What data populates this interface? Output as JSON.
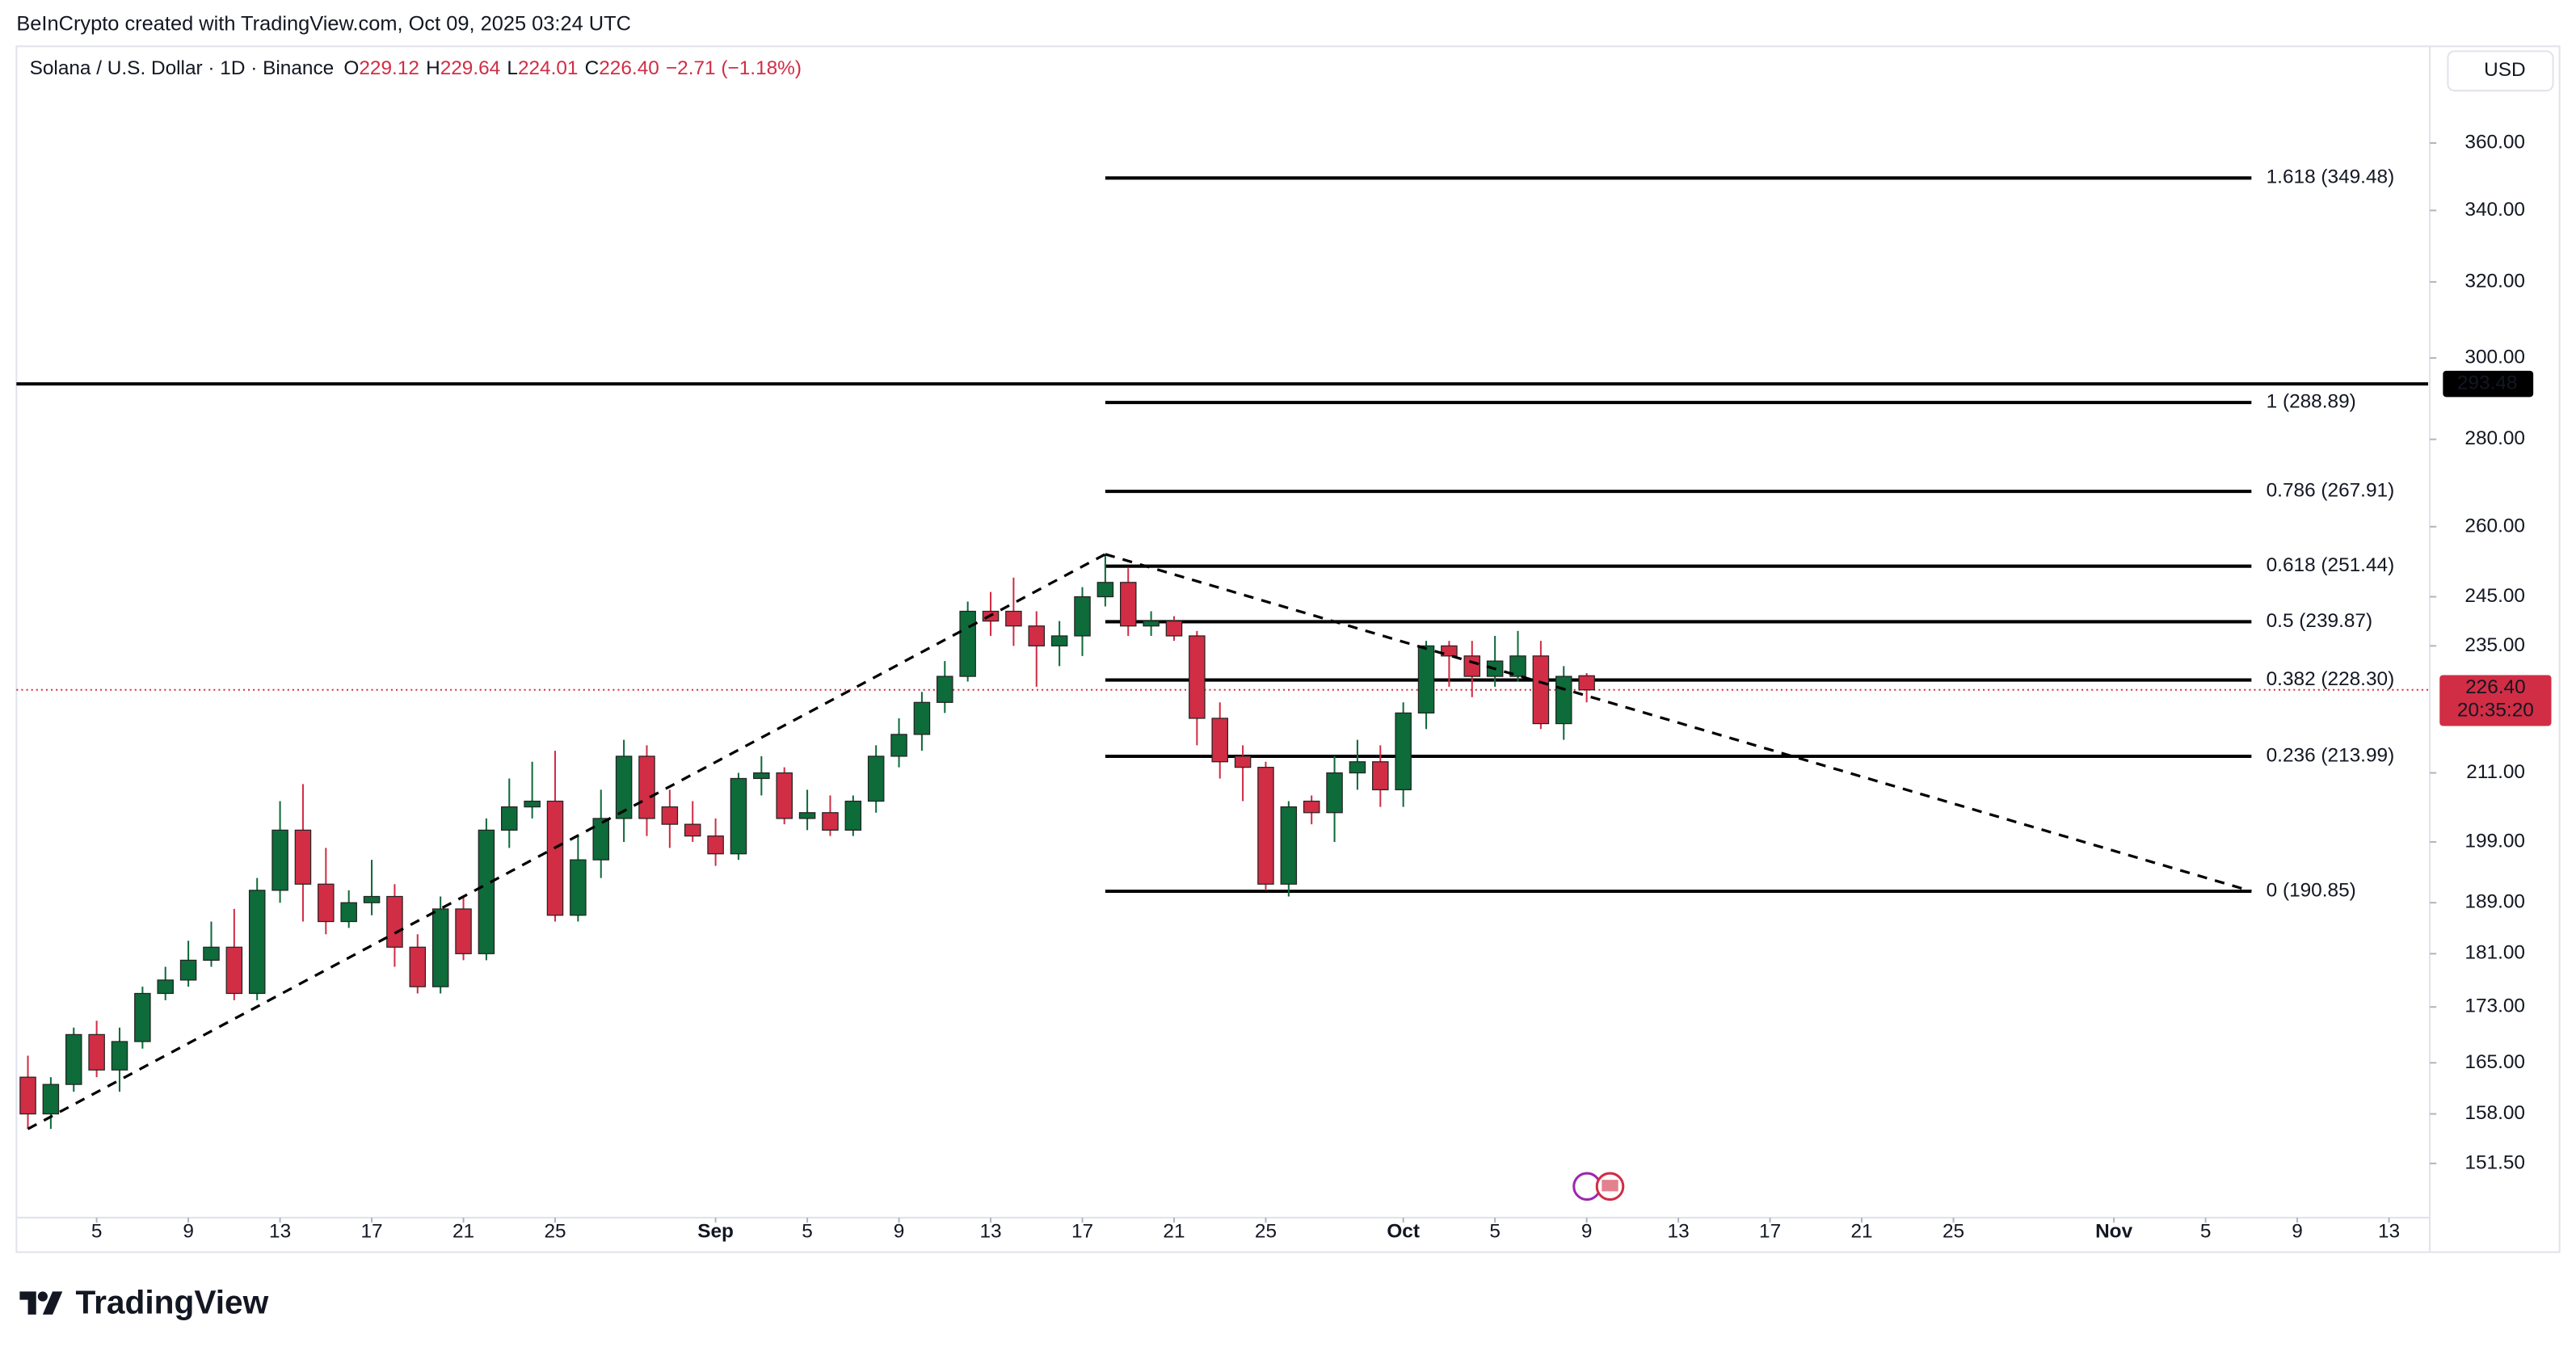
{
  "header": {
    "credit": "BeInCrypto created with TradingView.com, Oct 09, 2025 03:24 UTC"
  },
  "chart_data": {
    "type": "candlestick",
    "title": "Solana / U.S. Dollar · 1D · Binance",
    "ohlc_legend": [
      {
        "key": "O",
        "value": "229.12"
      },
      {
        "key": "H",
        "value": "229.64"
      },
      {
        "key": "L",
        "value": "224.01"
      },
      {
        "key": "C",
        "value": "226.40"
      }
    ],
    "change": "−2.71 (−1.18%)",
    "currency": "USD",
    "x": [
      "2025-08-02",
      "2025-08-03",
      "2025-08-04",
      "2025-08-05",
      "2025-08-06",
      "2025-08-07",
      "2025-08-08",
      "2025-08-09",
      "2025-08-10",
      "2025-08-11",
      "2025-08-12",
      "2025-08-13",
      "2025-08-14",
      "2025-08-15",
      "2025-08-16",
      "2025-08-17",
      "2025-08-18",
      "2025-08-19",
      "2025-08-20",
      "2025-08-21",
      "2025-08-22",
      "2025-08-23",
      "2025-08-24",
      "2025-08-25",
      "2025-08-26",
      "2025-08-27",
      "2025-08-28",
      "2025-08-29",
      "2025-08-30",
      "2025-08-31",
      "2025-09-01",
      "2025-09-02",
      "2025-09-03",
      "2025-09-04",
      "2025-09-05",
      "2025-09-06",
      "2025-09-07",
      "2025-09-08",
      "2025-09-09",
      "2025-09-10",
      "2025-09-11",
      "2025-09-12",
      "2025-09-13",
      "2025-09-14",
      "2025-09-15",
      "2025-09-16",
      "2025-09-17",
      "2025-09-18",
      "2025-09-19",
      "2025-09-20",
      "2025-09-21",
      "2025-09-22",
      "2025-09-23",
      "2025-09-24",
      "2025-09-25",
      "2025-09-26",
      "2025-09-27",
      "2025-09-28",
      "2025-09-29",
      "2025-09-30",
      "2025-10-01",
      "2025-10-02",
      "2025-10-03",
      "2025-10-04",
      "2025-10-05",
      "2025-10-06",
      "2025-10-07",
      "2025-10-08",
      "2025-10-09"
    ],
    "open": [
      163,
      158,
      162,
      169,
      164,
      168,
      175,
      177,
      180,
      182,
      175,
      191,
      201,
      192,
      186,
      189,
      190,
      182,
      176,
      188,
      181,
      201,
      205,
      206,
      187,
      196,
      203,
      214,
      205,
      202,
      200,
      197,
      210,
      211,
      203,
      204,
      201,
      206,
      214,
      218,
      224,
      229,
      242,
      242,
      239,
      235,
      237,
      245,
      248,
      239,
      240,
      237,
      221,
      214,
      212,
      192,
      206,
      204,
      211,
      213,
      208,
      222,
      235,
      233,
      229,
      229,
      233,
      220,
      229.12
    ],
    "high": [
      166,
      163,
      170,
      171,
      170,
      176,
      179,
      183,
      186,
      188,
      193,
      206,
      209,
      198,
      191,
      196,
      192,
      184,
      190,
      190,
      203,
      210,
      213,
      215,
      200,
      208,
      217,
      216,
      208,
      206,
      203,
      211,
      214,
      212,
      208,
      207,
      207,
      216,
      221,
      226,
      232,
      244,
      246,
      249,
      242,
      240,
      247,
      254,
      251,
      242,
      241,
      238,
      224,
      216,
      213,
      206,
      207,
      214,
      217,
      216,
      224,
      236,
      236,
      236,
      237,
      238,
      236,
      231,
      229.64
    ],
    "low": [
      156,
      156,
      161,
      163,
      161,
      167,
      174,
      176,
      179,
      174,
      174,
      189,
      186,
      184,
      185,
      187,
      179,
      175,
      175,
      180,
      180,
      198,
      203,
      186,
      186,
      193,
      199,
      200,
      198,
      199,
      195,
      196,
      207,
      202,
      201,
      200,
      200,
      204,
      212,
      215,
      222,
      228,
      237,
      235,
      227,
      231,
      233,
      243,
      237,
      237,
      236,
      216,
      210,
      206,
      191,
      190,
      202,
      199,
      208,
      205,
      205,
      219,
      227,
      225,
      227,
      228,
      219,
      217,
      224.01
    ],
    "close": [
      158,
      162,
      169,
      164,
      168,
      175,
      177,
      180,
      182,
      175,
      191,
      201,
      192,
      186,
      189,
      190,
      182,
      176,
      188,
      181,
      201,
      205,
      206,
      187,
      196,
      203,
      214,
      203,
      202,
      200,
      197,
      210,
      211,
      203,
      204,
      201,
      206,
      214,
      218,
      224,
      229,
      242,
      240,
      239,
      235,
      237,
      245,
      248,
      239,
      240,
      237,
      221,
      213,
      212,
      192,
      205,
      204,
      211,
      213,
      208,
      222,
      235,
      233,
      229,
      232,
      233,
      220,
      229,
      226.4
    ],
    "up_color": "#0e6b3a",
    "down_color": "#d12d45",
    "log_scale": true,
    "xlim": [
      "2025-08-01T12:00:00Z",
      "2025-11-14T17:00:00Z"
    ],
    "ylim": [
      145.3,
      389.7
    ],
    "yticks": [
      {
        "value": 360,
        "label": "360.00"
      },
      {
        "value": 340,
        "label": "340.00"
      },
      {
        "value": 320,
        "label": "320.00"
      },
      {
        "value": 300,
        "label": "300.00"
      },
      {
        "value": 280,
        "label": "280.00"
      },
      {
        "value": 260,
        "label": "260.00"
      },
      {
        "value": 245,
        "label": "245.00"
      },
      {
        "value": 235,
        "label": "235.00"
      },
      {
        "value": 211,
        "label": "211.00"
      },
      {
        "value": 199,
        "label": "199.00"
      },
      {
        "value": 189,
        "label": "189.00"
      },
      {
        "value": 181,
        "label": "181.00"
      },
      {
        "value": 173,
        "label": "173.00"
      },
      {
        "value": 165,
        "label": "165.00"
      },
      {
        "value": 158,
        "label": "158.00"
      },
      {
        "value": 151.5,
        "label": "151.50"
      }
    ],
    "xticks": [
      {
        "value": "2025-08-05",
        "label": "5"
      },
      {
        "value": "2025-08-09",
        "label": "9"
      },
      {
        "value": "2025-08-13",
        "label": "13"
      },
      {
        "value": "2025-08-17",
        "label": "17"
      },
      {
        "value": "2025-08-21",
        "label": "21"
      },
      {
        "value": "2025-08-25",
        "label": "25"
      },
      {
        "value": "2025-09-01",
        "label": "Sep"
      },
      {
        "value": "2025-09-05",
        "label": "5"
      },
      {
        "value": "2025-09-09",
        "label": "9"
      },
      {
        "value": "2025-09-13",
        "label": "13"
      },
      {
        "value": "2025-09-17",
        "label": "17"
      },
      {
        "value": "2025-09-21",
        "label": "21"
      },
      {
        "value": "2025-09-25",
        "label": "25"
      },
      {
        "value": "2025-10-01",
        "label": "Oct"
      },
      {
        "value": "2025-10-05",
        "label": "5"
      },
      {
        "value": "2025-10-09",
        "label": "9"
      },
      {
        "value": "2025-10-13",
        "label": "13"
      },
      {
        "value": "2025-10-17",
        "label": "17"
      },
      {
        "value": "2025-10-21",
        "label": "21"
      },
      {
        "value": "2025-10-25",
        "label": "25"
      },
      {
        "value": "2025-11-01",
        "label": "Nov"
      },
      {
        "value": "2025-11-05",
        "label": "5"
      },
      {
        "value": "2025-11-09",
        "label": "9"
      },
      {
        "value": "2025-11-13",
        "label": "13"
      }
    ],
    "fib_x": [
      "2025-09-18",
      "2025-11-07"
    ],
    "fib_levels": [
      {
        "label": "1.618 (349.48)",
        "value": 349.48
      },
      {
        "label": "1 (288.89)",
        "value": 288.89
      },
      {
        "label": "0.786 (267.91)",
        "value": 267.91
      },
      {
        "label": "0.618 (251.44)",
        "value": 251.44
      },
      {
        "label": "0.5 (239.87)",
        "value": 239.87
      },
      {
        "label": "0.382 (228.30)",
        "value": 228.3
      },
      {
        "label": "0.236 (213.99)",
        "value": 213.99
      },
      {
        "label": "0 (190.85)",
        "value": 190.85
      }
    ],
    "trendlines": [
      {
        "x": [
          "2025-08-02",
          "2025-09-18"
        ],
        "y": [
          156,
          254
        ]
      },
      {
        "x": [
          "2025-09-18",
          "2025-11-07"
        ],
        "y": [
          254,
          190.85
        ]
      }
    ],
    "horizontal_line": {
      "value": 293.48
    },
    "last_price": {
      "value": 226.4,
      "label": "226.40",
      "countdown": "20:35:20"
    }
  },
  "footer": {
    "logo": "TradingView"
  }
}
